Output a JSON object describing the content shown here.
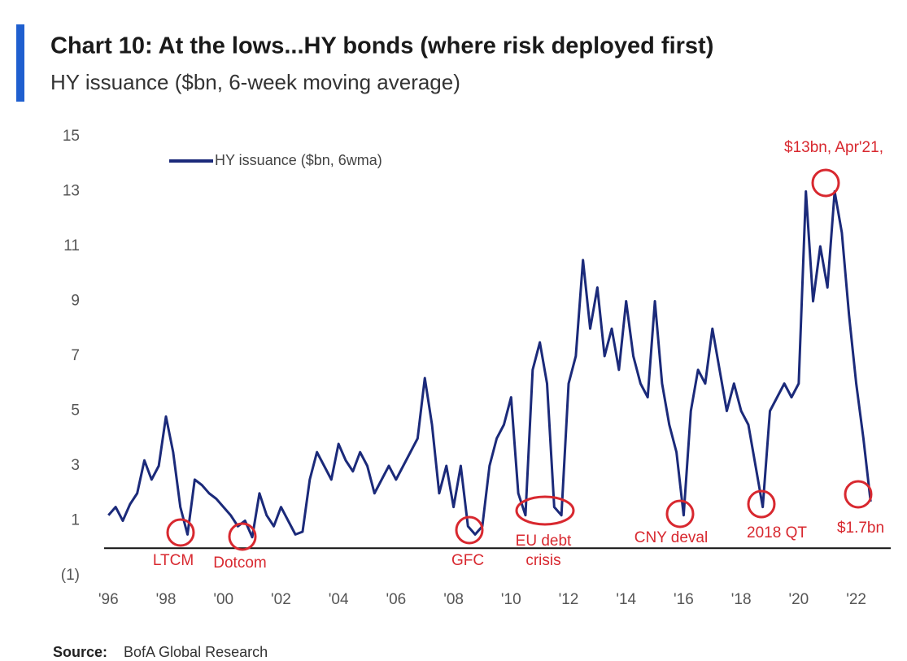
{
  "chart_data": {
    "type": "line",
    "title": "Chart 10: At the lows...HY bonds (where risk deployed first)",
    "subtitle": "HY issuance ($bn, 6-week moving average)",
    "source": {
      "label": "Source:",
      "text": "BofA Global Research"
    },
    "x": [
      1996,
      1996.25,
      1996.5,
      1996.75,
      1997,
      1997.25,
      1997.5,
      1997.75,
      1998,
      1998.25,
      1998.5,
      1998.75,
      1999,
      1999.25,
      1999.5,
      1999.75,
      2000,
      2000.25,
      2000.5,
      2000.75,
      2001,
      2001.25,
      2001.5,
      2001.75,
      2002,
      2002.25,
      2002.5,
      2002.75,
      2003,
      2003.25,
      2003.5,
      2003.75,
      2004,
      2004.25,
      2004.5,
      2004.75,
      2005,
      2005.25,
      2005.5,
      2005.75,
      2006,
      2006.25,
      2006.5,
      2006.75,
      2007,
      2007.25,
      2007.5,
      2007.75,
      2008,
      2008.25,
      2008.5,
      2008.75,
      2009,
      2009.25,
      2009.5,
      2009.75,
      2010,
      2010.25,
      2010.5,
      2010.75,
      2011,
      2011.25,
      2011.5,
      2011.75,
      2012,
      2012.25,
      2012.5,
      2012.75,
      2013,
      2013.25,
      2013.5,
      2013.75,
      2014,
      2014.25,
      2014.5,
      2014.75,
      2015,
      2015.25,
      2015.5,
      2015.75,
      2016,
      2016.25,
      2016.5,
      2016.75,
      2017,
      2017.25,
      2017.5,
      2017.75,
      2018,
      2018.25,
      2018.5,
      2018.75,
      2019,
      2019.25,
      2019.5,
      2019.75,
      2020,
      2020.25,
      2020.5,
      2020.75,
      2021,
      2021.25,
      2021.5,
      2021.75,
      2022,
      2022.25,
      2022.5
    ],
    "series": [
      {
        "name": "HY issuance ($bn, 6wma)",
        "color": "#1b2a7a",
        "values": [
          1.2,
          1.5,
          1.0,
          1.6,
          2.0,
          3.2,
          2.5,
          3.0,
          4.8,
          3.5,
          1.5,
          0.5,
          2.5,
          2.3,
          2.0,
          1.8,
          1.5,
          1.2,
          0.8,
          1.0,
          0.4,
          2.0,
          1.2,
          0.8,
          1.5,
          1.0,
          0.5,
          0.6,
          2.5,
          3.5,
          3.0,
          2.5,
          3.8,
          3.2,
          2.8,
          3.5,
          3.0,
          2.0,
          2.5,
          3.0,
          2.5,
          3.0,
          3.5,
          4.0,
          6.2,
          4.5,
          2.0,
          3.0,
          1.5,
          3.0,
          0.8,
          0.5,
          0.8,
          3.0,
          4.0,
          4.5,
          5.5,
          2.0,
          1.2,
          6.5,
          7.5,
          6.0,
          1.5,
          1.2,
          6.0,
          7.0,
          10.5,
          8.0,
          9.5,
          7.0,
          8.0,
          6.5,
          9.0,
          7.0,
          6.0,
          5.5,
          9.0,
          6.0,
          4.5,
          3.5,
          1.2,
          5.0,
          6.5,
          6.0,
          8.0,
          6.5,
          5.0,
          6.0,
          5.0,
          4.5,
          3.0,
          1.5,
          5.0,
          5.5,
          6.0,
          5.5,
          6.0,
          13.0,
          9.0,
          11.0,
          9.5,
          13.0,
          11.5,
          8.5,
          6.0,
          4.0,
          1.7
        ]
      }
    ],
    "xlim": [
      1995.85,
      2023.2
    ],
    "xticks": [
      {
        "value": 1996,
        "label": "'96"
      },
      {
        "value": 1998,
        "label": "'98"
      },
      {
        "value": 2000,
        "label": "'00"
      },
      {
        "value": 2002,
        "label": "'02"
      },
      {
        "value": 2004,
        "label": "'04"
      },
      {
        "value": 2006,
        "label": "'06"
      },
      {
        "value": 2008,
        "label": "'08"
      },
      {
        "value": 2010,
        "label": "'10"
      },
      {
        "value": 2012,
        "label": "'12"
      },
      {
        "value": 2014,
        "label": "'14"
      },
      {
        "value": 2016,
        "label": "'16"
      },
      {
        "value": 2018,
        "label": "'18"
      },
      {
        "value": 2020,
        "label": "'20"
      },
      {
        "value": 2022,
        "label": "'22"
      }
    ],
    "ylim": [
      -1,
      15
    ],
    "yticks": [
      {
        "value": -1,
        "label": "(1)"
      },
      1,
      3,
      5,
      7,
      9,
      11,
      13,
      15
    ],
    "grid": false,
    "annotations": [
      "LTCM",
      "Dotcom",
      "GFC",
      "EU debt",
      "crisis",
      "CNY deval",
      "2018 QT",
      "$1.7bn",
      "$13bn, Apr'21,"
    ]
  }
}
